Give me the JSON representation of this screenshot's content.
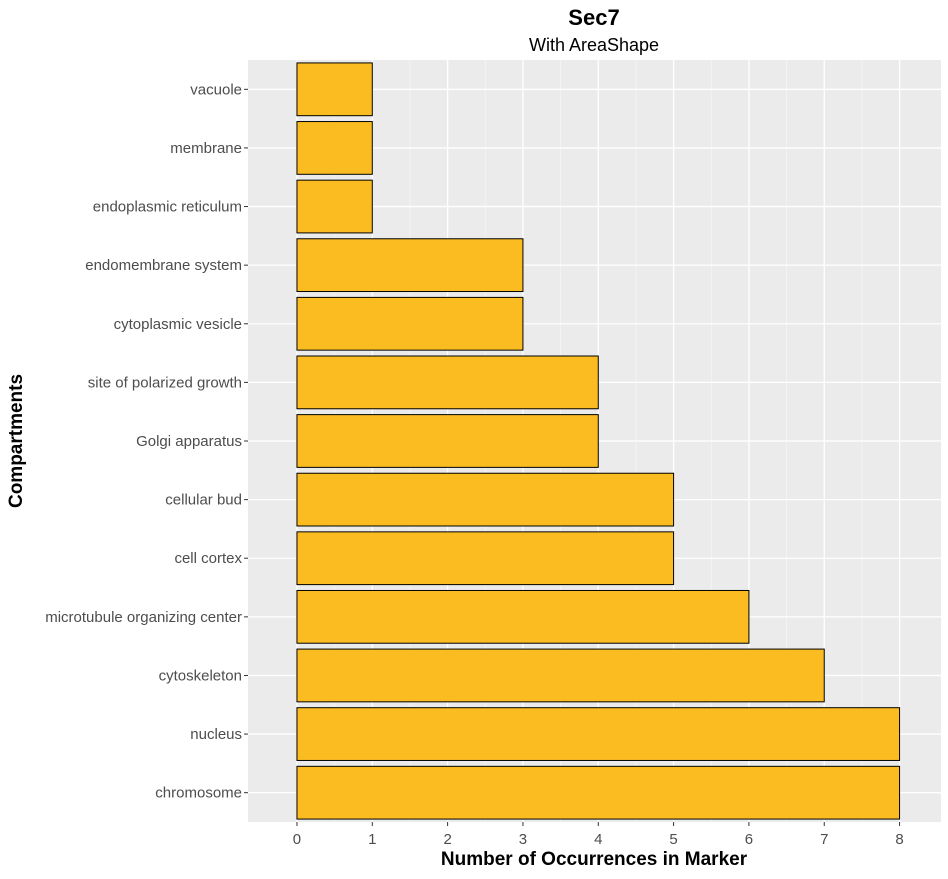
{
  "chart_data": {
    "type": "bar",
    "orientation": "horizontal",
    "title": "Sec7",
    "subtitle": "With AreaShape",
    "xlabel": "Number of Occurrences in Marker",
    "ylabel": "Compartments",
    "xlim": [
      -0.65,
      8.55
    ],
    "xticks": [
      0,
      1,
      2,
      3,
      4,
      5,
      6,
      7,
      8
    ],
    "grid": true,
    "legend": "none",
    "categories": [
      "vacuole",
      "membrane",
      "endoplasmic reticulum",
      "endomembrane system",
      "cytoplasmic vesicle",
      "site of polarized growth",
      "Golgi apparatus",
      "cellular bud",
      "cell cortex",
      "microtubule organizing center",
      "cytoskeleton",
      "nucleus",
      "chromosome"
    ],
    "values": [
      1,
      1,
      1,
      3,
      3,
      4,
      4,
      5,
      5,
      6,
      7,
      8,
      8
    ]
  },
  "colors": {
    "bar_fill": "#FBBC22",
    "bar_stroke": "#000000",
    "panel_background": "#EBEBEB",
    "grid_major": "#FFFFFF",
    "grid_minor": "#F5F5F5",
    "tick_label": "#4D4D4D",
    "tick_mark": "#333333"
  }
}
